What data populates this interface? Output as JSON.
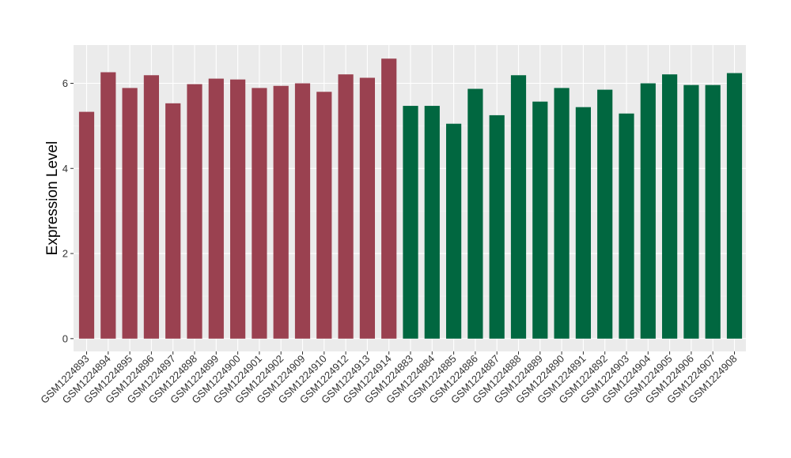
{
  "chart_data": {
    "type": "bar",
    "ylabel": "Expression Level",
    "xlabel": "",
    "ylim": [
      -0.3,
      6.9
    ],
    "yticks": [
      0,
      2,
      4,
      6
    ],
    "grid": true,
    "background": "#ebebeb",
    "colors": {
      "group_1": "#9a4150",
      "group_2": "#016740"
    },
    "categories": [
      "GSM1224893",
      "GSM1224894",
      "GSM1224895",
      "GSM1224896",
      "GSM1224897",
      "GSM1224898",
      "GSM1224899",
      "GSM1224900",
      "GSM1224901",
      "GSM1224902",
      "GSM1224909",
      "GSM1224910",
      "GSM1224912",
      "GSM1224913",
      "GSM1224914",
      "GSM1224883",
      "GSM1224884",
      "GSM1224885",
      "GSM1224886",
      "GSM1224887",
      "GSM1224888",
      "GSM1224889",
      "GSM1224890",
      "GSM1224891",
      "GSM1224892",
      "GSM1224903",
      "GSM1224904",
      "GSM1224905",
      "GSM1224906",
      "GSM1224907",
      "GSM1224908"
    ],
    "values": [
      5.33,
      6.26,
      5.89,
      6.19,
      5.53,
      5.98,
      6.11,
      6.09,
      5.89,
      5.94,
      6.0,
      5.8,
      6.21,
      6.13,
      6.58,
      5.47,
      5.47,
      5.05,
      5.87,
      5.25,
      6.19,
      5.57,
      5.89,
      5.44,
      5.85,
      5.29,
      6.0,
      6.21,
      5.96,
      5.96,
      6.24
    ],
    "groups": [
      1,
      1,
      1,
      1,
      1,
      1,
      1,
      1,
      1,
      1,
      1,
      1,
      1,
      1,
      1,
      2,
      2,
      2,
      2,
      2,
      2,
      2,
      2,
      2,
      2,
      2,
      2,
      2,
      2,
      2,
      2
    ]
  }
}
